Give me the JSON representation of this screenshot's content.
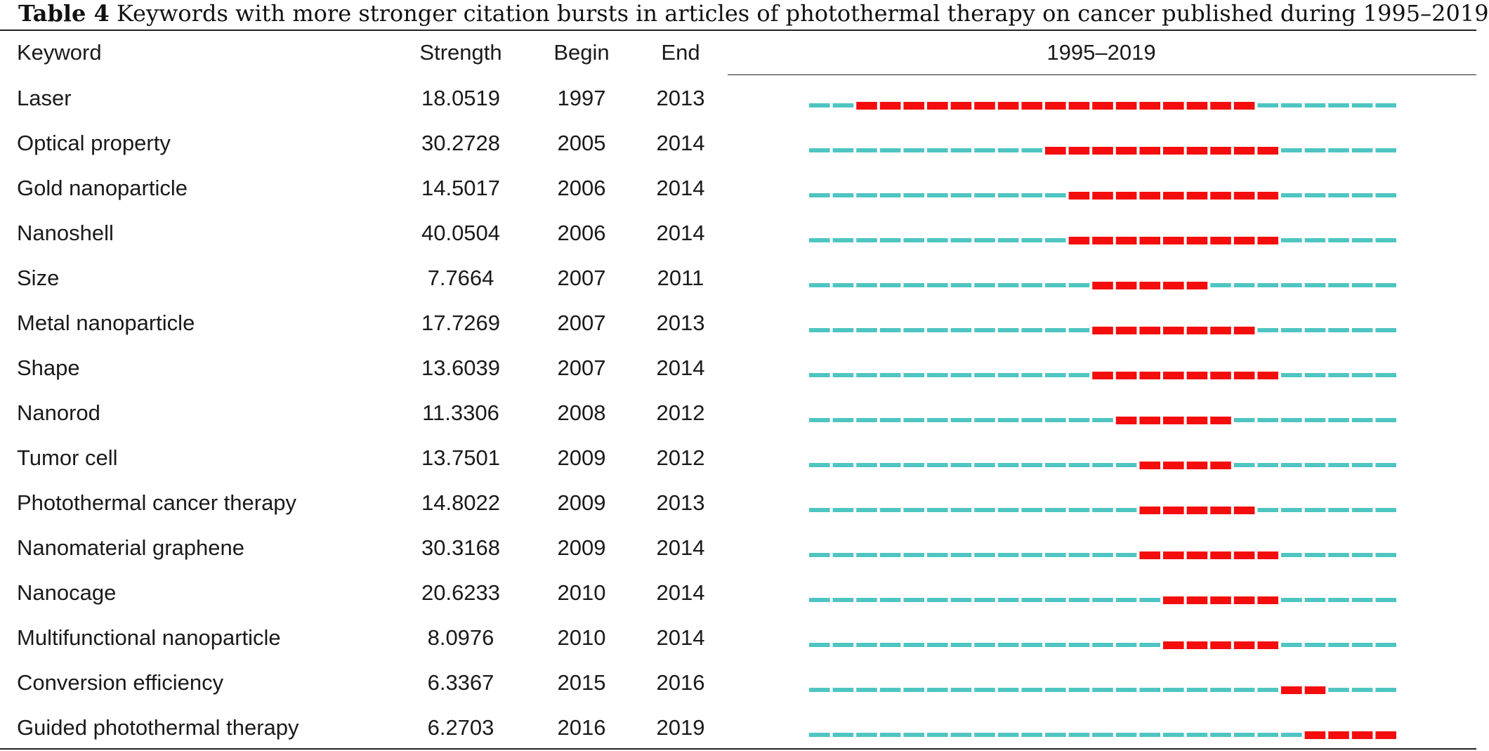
{
  "caption": {
    "label": "Table 4",
    "text": "Keywords with more stronger citation bursts in articles of photothermal therapy on cancer published during 1995–2019"
  },
  "table": {
    "headers": {
      "keyword": "Keyword",
      "strength": "Strength",
      "begin": "Begin",
      "end": "End",
      "range": "1995–2019"
    },
    "range_start": 1995,
    "range_end": 2019,
    "colors": {
      "normal": "#4ec5c1",
      "burst": "#f30d0d"
    },
    "rows": [
      {
        "keyword": "Laser",
        "strength": "18.0519",
        "begin": "1997",
        "end": "2013"
      },
      {
        "keyword": "Optical property",
        "strength": "30.2728",
        "begin": "2005",
        "end": "2014"
      },
      {
        "keyword": "Gold nanoparticle",
        "strength": "14.5017",
        "begin": "2006",
        "end": "2014"
      },
      {
        "keyword": "Nanoshell",
        "strength": "40.0504",
        "begin": "2006",
        "end": "2014"
      },
      {
        "keyword": "Size",
        "strength": "7.7664",
        "begin": "2007",
        "end": "2011"
      },
      {
        "keyword": "Metal nanoparticle",
        "strength": "17.7269",
        "begin": "2007",
        "end": "2013"
      },
      {
        "keyword": "Shape",
        "strength": "13.6039",
        "begin": "2007",
        "end": "2014"
      },
      {
        "keyword": "Nanorod",
        "strength": "11.3306",
        "begin": "2008",
        "end": "2012"
      },
      {
        "keyword": "Tumor cell",
        "strength": "13.7501",
        "begin": "2009",
        "end": "2012"
      },
      {
        "keyword": "Photothermal cancer therapy",
        "strength": "14.8022",
        "begin": "2009",
        "end": "2013"
      },
      {
        "keyword": "Nanomaterial graphene",
        "strength": "30.3168",
        "begin": "2009",
        "end": "2014"
      },
      {
        "keyword": "Nanocage",
        "strength": "20.6233",
        "begin": "2010",
        "end": "2014"
      },
      {
        "keyword": "Multifunctional nanoparticle",
        "strength": "8.0976",
        "begin": "2010",
        "end": "2014"
      },
      {
        "keyword": "Conversion efficiency",
        "strength": "6.3367",
        "begin": "2015",
        "end": "2016"
      },
      {
        "keyword": "Guided photothermal therapy",
        "strength": "6.2703",
        "begin": "2016",
        "end": "2019"
      }
    ]
  }
}
